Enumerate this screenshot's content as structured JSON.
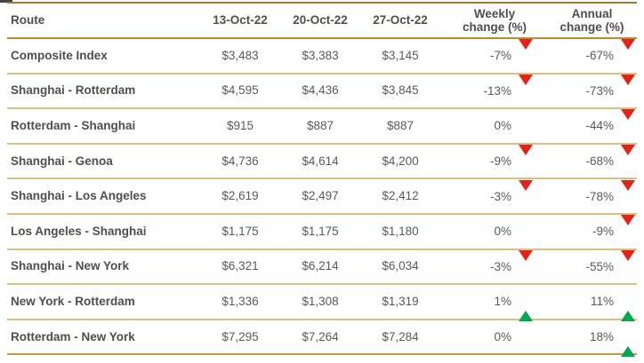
{
  "colors": {
    "top_rule": "#a1782e",
    "header_rule": "#be8c2c",
    "row_rule": "#dcbe7e",
    "bottom_rule": "#c99a3f",
    "text": "#5b5958",
    "text_bold": "#514e4a",
    "up_triangle": "#00a650",
    "down_triangle": "#e2231a"
  },
  "chart_data": {
    "type": "table",
    "columns": [
      "Route",
      "13-Oct-22",
      "20-Oct-22",
      "27-Oct-22",
      "Weekly change (%)",
      "Annual change (%)"
    ],
    "rows": [
      {
        "route": "Composite Index",
        "values": [
          "$3,483",
          "$3,383",
          "$3,145"
        ],
        "weekly": {
          "text": "-7%",
          "dir": "down"
        },
        "annual": {
          "text": "-67%",
          "dir": "down"
        }
      },
      {
        "route": "Shanghai - Rotterdam",
        "values": [
          "$4,595",
          "$4,436",
          "$3,845"
        ],
        "weekly": {
          "text": "-13%",
          "dir": "down"
        },
        "annual": {
          "text": "-73%",
          "dir": "down"
        }
      },
      {
        "route": "Rotterdam - Shanghai",
        "values": [
          "$915",
          "$887",
          "$887"
        ],
        "weekly": {
          "text": "0%",
          "dir": "none"
        },
        "annual": {
          "text": "-44%",
          "dir": "down"
        }
      },
      {
        "route": "Shanghai - Genoa",
        "values": [
          "$4,736",
          "$4,614",
          "$4,200"
        ],
        "weekly": {
          "text": "-9%",
          "dir": "down"
        },
        "annual": {
          "text": "-68%",
          "dir": "down"
        }
      },
      {
        "route": "Shanghai - Los Angeles",
        "values": [
          "$2,619",
          "$2,497",
          "$2,412"
        ],
        "weekly": {
          "text": "-3%",
          "dir": "down"
        },
        "annual": {
          "text": "-78%",
          "dir": "down"
        }
      },
      {
        "route": "Los Angeles - Shanghai",
        "values": [
          "$1,175",
          "$1,175",
          "$1,180"
        ],
        "weekly": {
          "text": "0%",
          "dir": "none"
        },
        "annual": {
          "text": "-9%",
          "dir": "down"
        }
      },
      {
        "route": "Shanghai - New York",
        "values": [
          "$6,321",
          "$6,214",
          "$6,034"
        ],
        "weekly": {
          "text": "-3%",
          "dir": "down"
        },
        "annual": {
          "text": "-55%",
          "dir": "down"
        }
      },
      {
        "route": "New York - Rotterdam",
        "values": [
          "$1,336",
          "$1,308",
          "$1,319"
        ],
        "weekly": {
          "text": "1%",
          "dir": "up"
        },
        "annual": {
          "text": "11%",
          "dir": "up"
        }
      },
      {
        "route": "Rotterdam - New York",
        "values": [
          "$7,295",
          "$7,264",
          "$7,284"
        ],
        "weekly": {
          "text": "0%",
          "dir": "none"
        },
        "annual": {
          "text": "18%",
          "dir": "up"
        }
      }
    ]
  }
}
